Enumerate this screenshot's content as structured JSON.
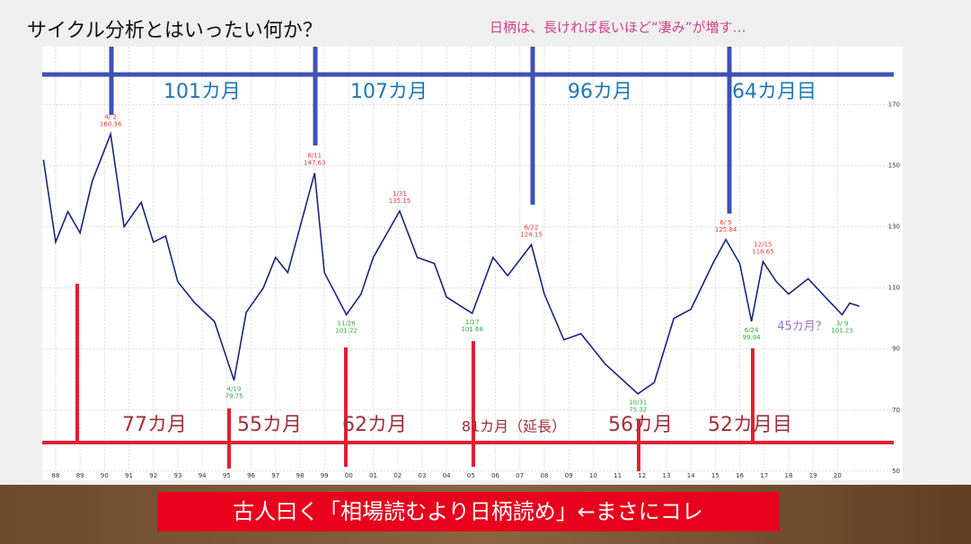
{
  "slide": {
    "title": "サイクル分析とはいったい何か？",
    "subtitle": "日柄は、長ければ長いほど“凄み”が増す…",
    "blue_cycles": [
      "101カ月",
      "107カ月",
      "96カ月",
      "64カ月目"
    ],
    "red_cycles": [
      "77カ月",
      "55カ月",
      "62カ月",
      "81カ月（延長）",
      "56カ月",
      "52カ月目"
    ],
    "note": "45カ月？",
    "banner": "古人曰く「相場読むより日柄読め」←まさにコレ"
  },
  "chart_data": {
    "type": "line",
    "color": "#1a237e",
    "x": [
      1987.5,
      1988.0,
      1988.5,
      1989.0,
      1989.5,
      1990.25,
      1990.8,
      1991.5,
      1992.0,
      1992.5,
      1993.0,
      1993.7,
      1994.5,
      1995.3,
      1995.8,
      1996.5,
      1997.0,
      1997.5,
      1998.6,
      1999.0,
      1999.9,
      2000.5,
      2001.0,
      2002.08,
      2002.8,
      2003.5,
      2004.0,
      2005.05,
      2005.9,
      2006.5,
      2007.47,
      2008.0,
      2008.8,
      2009.5,
      2010.5,
      2011.83,
      2012.5,
      2013.3,
      2014.0,
      2014.9,
      2015.43,
      2016.0,
      2016.48,
      2016.95,
      2017.5,
      2018.0,
      2018.8,
      2019.5,
      2020.19,
      2020.5,
      2020.9
    ],
    "values": [
      152,
      125,
      135,
      128,
      145,
      160.36,
      130,
      138,
      125,
      127,
      112,
      105,
      99,
      79.75,
      102,
      110,
      120,
      115,
      147.63,
      115,
      101.22,
      108,
      120,
      135.15,
      120,
      118,
      107,
      101.68,
      120,
      114,
      124.15,
      108,
      93,
      95,
      85,
      75.32,
      79,
      100,
      103,
      118,
      125.84,
      118,
      99.04,
      118.65,
      112,
      108,
      113,
      107,
      101.23,
      105,
      104
    ],
    "annotations": [
      {
        "kind": "peak",
        "x": 1990.25,
        "label": "4/ 2",
        "value": 160.36
      },
      {
        "kind": "trough",
        "x": 1995.3,
        "label": "4/19",
        "value": 79.75
      },
      {
        "kind": "peak",
        "x": 1998.6,
        "label": "8/11",
        "value": 147.63
      },
      {
        "kind": "trough",
        "x": 1999.9,
        "label": "11/26",
        "value": 101.22
      },
      {
        "kind": "peak",
        "x": 2002.08,
        "label": "1/31",
        "value": 135.15
      },
      {
        "kind": "trough",
        "x": 2005.05,
        "label": "1/17",
        "value": 101.68
      },
      {
        "kind": "peak",
        "x": 2007.47,
        "label": "6/22",
        "value": 124.15
      },
      {
        "kind": "trough",
        "x": 2011.83,
        "label": "10/31",
        "value": 75.32
      },
      {
        "kind": "peak",
        "x": 2015.43,
        "label": "6/ 5",
        "value": 125.84
      },
      {
        "kind": "trough",
        "x": 2016.48,
        "label": "6/24",
        "value": 99.04
      },
      {
        "kind": "peak",
        "x": 2016.95,
        "label": "12/15",
        "value": 118.65
      },
      {
        "kind": "trough",
        "x": 2020.19,
        "label": "3/ 9",
        "value": 101.23
      }
    ],
    "xlim": [
      1987.45,
      2022.67
    ],
    "ylim": [
      47,
      189
    ],
    "grid": true,
    "yticks": [
      50,
      70,
      90,
      110,
      130,
      150,
      170
    ],
    "xticks": [
      {
        "value": 1988,
        "label": "88"
      },
      {
        "value": 1989,
        "label": "89"
      },
      {
        "value": 1990,
        "label": "90"
      },
      {
        "value": 1991,
        "label": "91"
      },
      {
        "value": 1992,
        "label": "92"
      },
      {
        "value": 1993,
        "label": "93"
      },
      {
        "value": 1994,
        "label": "94"
      },
      {
        "value": 1995,
        "label": "95"
      },
      {
        "value": 1996,
        "label": "96"
      },
      {
        "value": 1997,
        "label": "97"
      },
      {
        "value": 1998,
        "label": "98"
      },
      {
        "value": 1999,
        "label": "99"
      },
      {
        "value": 2000,
        "label": "00"
      },
      {
        "value": 2001,
        "label": "01"
      },
      {
        "value": 2002,
        "label": "02"
      },
      {
        "value": 2003,
        "label": "03"
      },
      {
        "value": 2004,
        "label": "04"
      },
      {
        "value": 2005,
        "label": "05"
      },
      {
        "value": 2006,
        "label": "06"
      },
      {
        "value": 2007,
        "label": "07"
      },
      {
        "value": 2008,
        "label": "08"
      },
      {
        "value": 2009,
        "label": "09"
      },
      {
        "value": 2010,
        "label": "10"
      },
      {
        "value": 2011,
        "label": "11"
      },
      {
        "value": 2012,
        "label": "12"
      },
      {
        "value": 2013,
        "label": "13"
      },
      {
        "value": 2014,
        "label": "14"
      },
      {
        "value": 2015,
        "label": "15"
      },
      {
        "value": 2016,
        "label": "16"
      },
      {
        "value": 2017,
        "label": "17"
      },
      {
        "value": 2018,
        "label": "18"
      },
      {
        "value": 2019,
        "label": "19"
      },
      {
        "value": 2020,
        "label": "20"
      }
    ]
  }
}
